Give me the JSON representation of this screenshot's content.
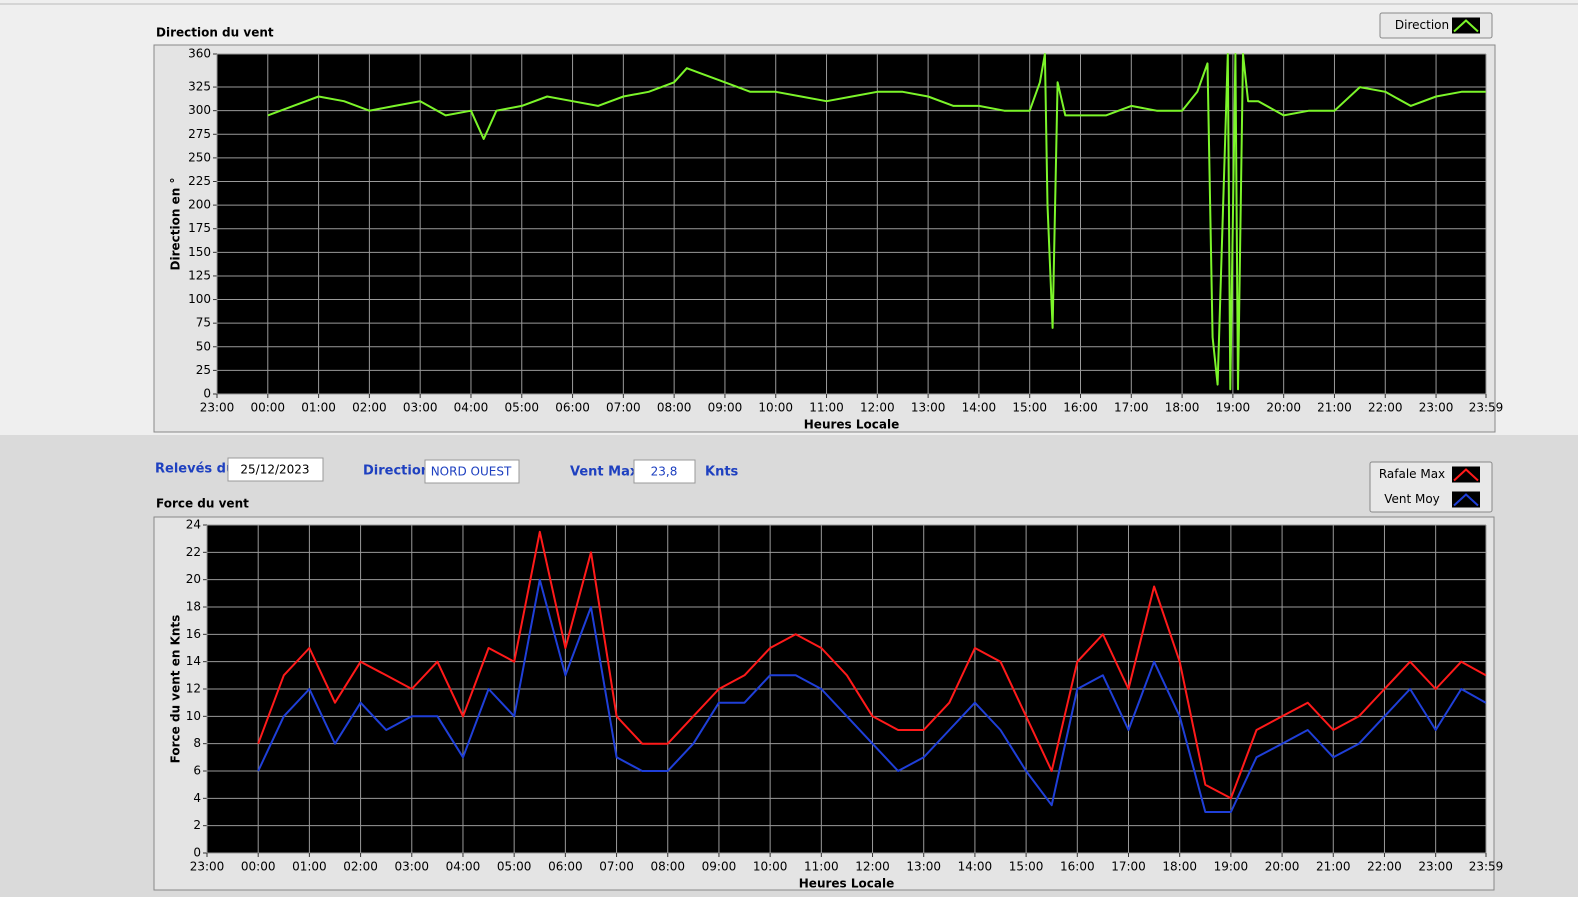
{
  "controls": {
    "date_label": "Relevés du",
    "date": "25/12/2023",
    "direction_label": "Direction",
    "direction": "NORD OUEST",
    "max_label": "Vent Max",
    "max": "23,8",
    "max_unit": "Knts"
  },
  "chart_data": [
    {
      "type": "line",
      "title": "Direction du vent",
      "x_label": "Heures Locale",
      "y_label": "Direction en °",
      "x": [
        0,
        0.5,
        1,
        1.5,
        2,
        2.5,
        3,
        3.5,
        4,
        4.25,
        4.5,
        5,
        5.5,
        6,
        6.5,
        7,
        7.5,
        8,
        8.25,
        8.5,
        9,
        9.5,
        10,
        10.5,
        11,
        11.5,
        12,
        12.5,
        13,
        13.5,
        14,
        14.5,
        15,
        15.2,
        15.3,
        15.35,
        15.45,
        15.55,
        15.7,
        16,
        16.5,
        17,
        17.5,
        18,
        18.3,
        18.5,
        18.6,
        18.7,
        18.9,
        18.95,
        19.05,
        19.1,
        19.2,
        19.3,
        19.5,
        20,
        20.5,
        21,
        21.5,
        22,
        22.5,
        23,
        23.5,
        23.98
      ],
      "series": [
        {
          "name": "Direction",
          "color": "#7cf52a",
          "values": [
            295,
            305,
            315,
            310,
            300,
            305,
            310,
            295,
            300,
            270,
            300,
            305,
            315,
            310,
            305,
            315,
            320,
            330,
            345,
            340,
            330,
            320,
            320,
            315,
            310,
            315,
            320,
            320,
            315,
            305,
            305,
            300,
            300,
            330,
            360,
            200,
            70,
            330,
            295,
            295,
            295,
            305,
            300,
            300,
            320,
            350,
            60,
            10,
            360,
            5,
            360,
            5,
            360,
            310,
            310,
            295,
            300,
            300,
            325,
            320,
            305,
            315,
            320,
            320
          ]
        }
      ],
      "xlim": [
        -1,
        23.9833
      ],
      "ylim": [
        0,
        360
      ],
      "xticks": [
        {
          "value": -1,
          "label": "23:00"
        },
        {
          "value": 0,
          "label": "00:00"
        },
        {
          "value": 1,
          "label": "01:00"
        },
        {
          "value": 2,
          "label": "02:00"
        },
        {
          "value": 3,
          "label": "03:00"
        },
        {
          "value": 4,
          "label": "04:00"
        },
        {
          "value": 5,
          "label": "05:00"
        },
        {
          "value": 6,
          "label": "06:00"
        },
        {
          "value": 7,
          "label": "07:00"
        },
        {
          "value": 8,
          "label": "08:00"
        },
        {
          "value": 9,
          "label": "09:00"
        },
        {
          "value": 10,
          "label": "10:00"
        },
        {
          "value": 11,
          "label": "11:00"
        },
        {
          "value": 12,
          "label": "12:00"
        },
        {
          "value": 13,
          "label": "13:00"
        },
        {
          "value": 14,
          "label": "14:00"
        },
        {
          "value": 15,
          "label": "15:00"
        },
        {
          "value": 16,
          "label": "16:00"
        },
        {
          "value": 17,
          "label": "17:00"
        },
        {
          "value": 18,
          "label": "18:00"
        },
        {
          "value": 19,
          "label": "19:00"
        },
        {
          "value": 20,
          "label": "20:00"
        },
        {
          "value": 21,
          "label": "21:00"
        },
        {
          "value": 22,
          "label": "22:00"
        },
        {
          "value": 23,
          "label": "23:00"
        },
        {
          "value": 23.9833,
          "label": "23:59"
        }
      ],
      "yticks": [
        0,
        25,
        50,
        75,
        100,
        125,
        150,
        175,
        200,
        225,
        250,
        275,
        300,
        325,
        360
      ],
      "grid": true,
      "legend": "top-right"
    },
    {
      "type": "line",
      "title": "Force du vent",
      "x_label": "Heures Locale",
      "y_label": "Force du vent en Knts",
      "x": [
        0,
        0.5,
        1,
        1.5,
        2,
        2.5,
        3,
        3.5,
        4,
        4.5,
        5,
        5.5,
        6,
        6.5,
        7,
        7.5,
        8,
        8.5,
        9,
        9.5,
        10,
        10.5,
        11,
        11.5,
        12,
        12.5,
        13,
        13.5,
        14,
        14.5,
        15,
        15.5,
        16,
        16.5,
        17,
        17.5,
        18,
        18.5,
        19,
        19.5,
        20,
        20.5,
        21,
        21.5,
        22,
        22.5,
        23,
        23.5,
        23.98
      ],
      "series": [
        {
          "name": "Rafale Max",
          "color": "#ff1a1a",
          "values": [
            8,
            13,
            15,
            11,
            14,
            13,
            12,
            14,
            10,
            15,
            14,
            23.5,
            15,
            22,
            10,
            8,
            8,
            10,
            12,
            13,
            15,
            16,
            15,
            13,
            10,
            9,
            9,
            11,
            15,
            14,
            10,
            6,
            14,
            16,
            12,
            19.5,
            14,
            5,
            4,
            9,
            10,
            11,
            9,
            10,
            12,
            14,
            12,
            14,
            13
          ]
        },
        {
          "name": "Vent Moy",
          "color": "#1f3fd8",
          "values": [
            6,
            10,
            12,
            8,
            11,
            9,
            10,
            10,
            7,
            12,
            10,
            20,
            13,
            18,
            7,
            6,
            6,
            8,
            11,
            11,
            13,
            13,
            12,
            10,
            8,
            6,
            7,
            9,
            11,
            9,
            6,
            3.5,
            12,
            13,
            9,
            14,
            10,
            3,
            3,
            7,
            8,
            9,
            7,
            8,
            10,
            12,
            9,
            12,
            11
          ]
        }
      ],
      "xlim": [
        -1,
        23.9833
      ],
      "ylim": [
        0,
        24
      ],
      "xticks": [
        {
          "value": -1,
          "label": "23:00"
        },
        {
          "value": 0,
          "label": "00:00"
        },
        {
          "value": 1,
          "label": "01:00"
        },
        {
          "value": 2,
          "label": "02:00"
        },
        {
          "value": 3,
          "label": "03:00"
        },
        {
          "value": 4,
          "label": "04:00"
        },
        {
          "value": 5,
          "label": "05:00"
        },
        {
          "value": 6,
          "label": "06:00"
        },
        {
          "value": 7,
          "label": "07:00"
        },
        {
          "value": 8,
          "label": "08:00"
        },
        {
          "value": 9,
          "label": "09:00"
        },
        {
          "value": 10,
          "label": "10:00"
        },
        {
          "value": 11,
          "label": "11:00"
        },
        {
          "value": 12,
          "label": "12:00"
        },
        {
          "value": 13,
          "label": "13:00"
        },
        {
          "value": 14,
          "label": "14:00"
        },
        {
          "value": 15,
          "label": "15:00"
        },
        {
          "value": 16,
          "label": "16:00"
        },
        {
          "value": 17,
          "label": "17:00"
        },
        {
          "value": 18,
          "label": "18:00"
        },
        {
          "value": 19,
          "label": "19:00"
        },
        {
          "value": 20,
          "label": "20:00"
        },
        {
          "value": 21,
          "label": "21:00"
        },
        {
          "value": 22,
          "label": "22:00"
        },
        {
          "value": 23,
          "label": "23:00"
        },
        {
          "value": 23.9833,
          "label": "23:59"
        }
      ],
      "yticks": [
        0,
        2,
        4,
        6,
        8,
        10,
        12,
        14,
        16,
        18,
        20,
        22,
        24
      ],
      "grid": true,
      "legend": "top-right"
    }
  ]
}
